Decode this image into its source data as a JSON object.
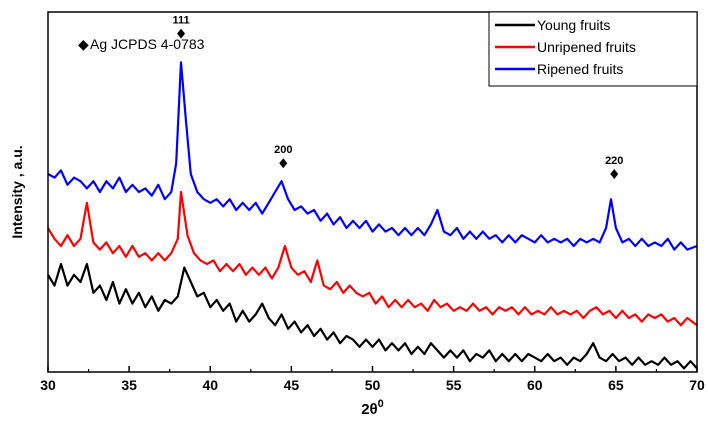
{
  "chart_data": {
    "type": "line",
    "xlabel": "2θ",
    "xlabel_sup": "0",
    "ylabel": "Intensity , a.u.",
    "xlim": [
      30,
      70
    ],
    "ylim": [
      0,
      100
    ],
    "xticks": [
      "30",
      "35",
      "40",
      "45",
      "50",
      "55",
      "60",
      "65",
      "70"
    ],
    "yticks_labeled": false,
    "grid": false,
    "legend_position": "top-right",
    "annotation": {
      "symbol": "◆",
      "text": "Ag JCPDS 4-0783"
    },
    "peak_labels": [
      {
        "x": 38.2,
        "y": 94,
        "label": "111"
      },
      {
        "x": 44.5,
        "y": 58,
        "label": "200"
      },
      {
        "x": 64.9,
        "y": 55,
        "label": "220"
      }
    ],
    "series": [
      {
        "name": "Young fruits",
        "color": "#000000",
        "points": [
          [
            30,
            27
          ],
          [
            30.4,
            24
          ],
          [
            30.8,
            30
          ],
          [
            31.2,
            24
          ],
          [
            31.6,
            27
          ],
          [
            32,
            25
          ],
          [
            32.4,
            30
          ],
          [
            32.8,
            22
          ],
          [
            33.2,
            24
          ],
          [
            33.6,
            20
          ],
          [
            34,
            25
          ],
          [
            34.4,
            19
          ],
          [
            34.8,
            23
          ],
          [
            35.2,
            19
          ],
          [
            35.6,
            22
          ],
          [
            36,
            18
          ],
          [
            36.4,
            21
          ],
          [
            36.8,
            17
          ],
          [
            37.2,
            20
          ],
          [
            37.6,
            19
          ],
          [
            38,
            21
          ],
          [
            38.4,
            29
          ],
          [
            38.8,
            25
          ],
          [
            39.2,
            21
          ],
          [
            39.6,
            22
          ],
          [
            40,
            18
          ],
          [
            40.4,
            20
          ],
          [
            40.8,
            17
          ],
          [
            41.2,
            19
          ],
          [
            41.6,
            14
          ],
          [
            42,
            17
          ],
          [
            42.4,
            14
          ],
          [
            42.8,
            16
          ],
          [
            43.2,
            19
          ],
          [
            43.6,
            15
          ],
          [
            44,
            13
          ],
          [
            44.4,
            16
          ],
          [
            44.8,
            12
          ],
          [
            45.2,
            14
          ],
          [
            45.6,
            11
          ],
          [
            46,
            13
          ],
          [
            46.4,
            10
          ],
          [
            46.8,
            12
          ],
          [
            47.2,
            9
          ],
          [
            47.6,
            11
          ],
          [
            48,
            8
          ],
          [
            48.4,
            10
          ],
          [
            48.8,
            9
          ],
          [
            49.2,
            7
          ],
          [
            49.6,
            9
          ],
          [
            50,
            7
          ],
          [
            50.4,
            9
          ],
          [
            50.8,
            6
          ],
          [
            51.2,
            8
          ],
          [
            51.6,
            6
          ],
          [
            52,
            8
          ],
          [
            52.4,
            5
          ],
          [
            52.8,
            7
          ],
          [
            53.2,
            5
          ],
          [
            53.6,
            8
          ],
          [
            54,
            6
          ],
          [
            54.4,
            4
          ],
          [
            54.8,
            6
          ],
          [
            55.2,
            4
          ],
          [
            55.6,
            6
          ],
          [
            56,
            3
          ],
          [
            56.4,
            5
          ],
          [
            56.8,
            4
          ],
          [
            57.2,
            6
          ],
          [
            57.6,
            3
          ],
          [
            58,
            5
          ],
          [
            58.4,
            3
          ],
          [
            58.8,
            5
          ],
          [
            59.2,
            3
          ],
          [
            59.6,
            5
          ],
          [
            60,
            4
          ],
          [
            60.4,
            3
          ],
          [
            60.8,
            5
          ],
          [
            61.2,
            3
          ],
          [
            61.6,
            4
          ],
          [
            62,
            2
          ],
          [
            62.4,
            4
          ],
          [
            62.8,
            3
          ],
          [
            63.2,
            5
          ],
          [
            63.6,
            8
          ],
          [
            64,
            4
          ],
          [
            64.4,
            3
          ],
          [
            64.8,
            5
          ],
          [
            65.2,
            3
          ],
          [
            65.6,
            4
          ],
          [
            66,
            2
          ],
          [
            66.4,
            4
          ],
          [
            66.8,
            2
          ],
          [
            67.2,
            3
          ],
          [
            67.6,
            2
          ],
          [
            68,
            4
          ],
          [
            68.4,
            2
          ],
          [
            68.8,
            3
          ],
          [
            69.2,
            1
          ],
          [
            69.6,
            3
          ],
          [
            70,
            1
          ]
        ]
      },
      {
        "name": "Unripened fruits",
        "color": "#ff0000",
        "points": [
          [
            30,
            40
          ],
          [
            30.4,
            37
          ],
          [
            30.8,
            35
          ],
          [
            31.2,
            38
          ],
          [
            31.6,
            35
          ],
          [
            32,
            37
          ],
          [
            32.4,
            47
          ],
          [
            32.8,
            36
          ],
          [
            33.2,
            34
          ],
          [
            33.6,
            36
          ],
          [
            34,
            33
          ],
          [
            34.4,
            35
          ],
          [
            34.8,
            32
          ],
          [
            35.2,
            35
          ],
          [
            35.6,
            32
          ],
          [
            36,
            33
          ],
          [
            36.4,
            31
          ],
          [
            36.8,
            33
          ],
          [
            37.2,
            31
          ],
          [
            37.6,
            33
          ],
          [
            38,
            37
          ],
          [
            38.2,
            50
          ],
          [
            38.6,
            38
          ],
          [
            39,
            33
          ],
          [
            39.4,
            31
          ],
          [
            39.8,
            30
          ],
          [
            40.2,
            31
          ],
          [
            40.6,
            28
          ],
          [
            41,
            30
          ],
          [
            41.4,
            28
          ],
          [
            41.8,
            30
          ],
          [
            42.2,
            27
          ],
          [
            42.6,
            29
          ],
          [
            43,
            27
          ],
          [
            43.4,
            29
          ],
          [
            43.8,
            26
          ],
          [
            44.2,
            29
          ],
          [
            44.6,
            35
          ],
          [
            45,
            29
          ],
          [
            45.4,
            27
          ],
          [
            45.8,
            28
          ],
          [
            46.2,
            25
          ],
          [
            46.6,
            31
          ],
          [
            47,
            24
          ],
          [
            47.4,
            23
          ],
          [
            47.8,
            25
          ],
          [
            48.2,
            22
          ],
          [
            48.6,
            24
          ],
          [
            49,
            22
          ],
          [
            49.4,
            21
          ],
          [
            49.8,
            22
          ],
          [
            50.2,
            19
          ],
          [
            50.6,
            21
          ],
          [
            51,
            18
          ],
          [
            51.4,
            20
          ],
          [
            51.8,
            18
          ],
          [
            52.2,
            20
          ],
          [
            52.6,
            18
          ],
          [
            53,
            19
          ],
          [
            53.4,
            17
          ],
          [
            53.8,
            20
          ],
          [
            54.2,
            18
          ],
          [
            54.6,
            19
          ],
          [
            55,
            17
          ],
          [
            55.4,
            18
          ],
          [
            55.8,
            17
          ],
          [
            56.2,
            19
          ],
          [
            56.6,
            17
          ],
          [
            57,
            18
          ],
          [
            57.4,
            16
          ],
          [
            57.8,
            18
          ],
          [
            58.2,
            17
          ],
          [
            58.6,
            18
          ],
          [
            59,
            16
          ],
          [
            59.4,
            18
          ],
          [
            59.8,
            16
          ],
          [
            60.2,
            17
          ],
          [
            60.6,
            16
          ],
          [
            61,
            18
          ],
          [
            61.4,
            16
          ],
          [
            61.8,
            17
          ],
          [
            62.2,
            16
          ],
          [
            62.6,
            17
          ],
          [
            63,
            15
          ],
          [
            63.4,
            17
          ],
          [
            63.8,
            18
          ],
          [
            64.2,
            16
          ],
          [
            64.6,
            17
          ],
          [
            65,
            15
          ],
          [
            65.4,
            17
          ],
          [
            65.8,
            15
          ],
          [
            66.2,
            16
          ],
          [
            66.6,
            14
          ],
          [
            67,
            16
          ],
          [
            67.4,
            15
          ],
          [
            67.8,
            16
          ],
          [
            68.2,
            14
          ],
          [
            68.6,
            15
          ],
          [
            69,
            13
          ],
          [
            69.4,
            15
          ],
          [
            70,
            13
          ]
        ]
      },
      {
        "name": "Ripened fruits",
        "color": "#0000ff",
        "points": [
          [
            30,
            55
          ],
          [
            30.4,
            54
          ],
          [
            30.8,
            56
          ],
          [
            31.2,
            52
          ],
          [
            31.6,
            54
          ],
          [
            32,
            53
          ],
          [
            32.4,
            51
          ],
          [
            32.8,
            53
          ],
          [
            33.2,
            50
          ],
          [
            33.6,
            53
          ],
          [
            34,
            51
          ],
          [
            34.4,
            54
          ],
          [
            34.8,
            50
          ],
          [
            35.2,
            52
          ],
          [
            35.6,
            50
          ],
          [
            36,
            51
          ],
          [
            36.4,
            49
          ],
          [
            36.8,
            52
          ],
          [
            37.2,
            48
          ],
          [
            37.6,
            50
          ],
          [
            37.9,
            58
          ],
          [
            38.2,
            86
          ],
          [
            38.5,
            70
          ],
          [
            38.8,
            55
          ],
          [
            39.2,
            50
          ],
          [
            39.6,
            48
          ],
          [
            40,
            47
          ],
          [
            40.4,
            48
          ],
          [
            40.8,
            46
          ],
          [
            41.2,
            48
          ],
          [
            41.6,
            45
          ],
          [
            42,
            47
          ],
          [
            42.4,
            45
          ],
          [
            42.8,
            47
          ],
          [
            43.2,
            44
          ],
          [
            43.6,
            47
          ],
          [
            44,
            50
          ],
          [
            44.4,
            53
          ],
          [
            44.8,
            48
          ],
          [
            45.2,
            45
          ],
          [
            45.6,
            46
          ],
          [
            46,
            44
          ],
          [
            46.4,
            45
          ],
          [
            46.8,
            42
          ],
          [
            47.2,
            44
          ],
          [
            47.6,
            41
          ],
          [
            48,
            43
          ],
          [
            48.4,
            40
          ],
          [
            48.8,
            42
          ],
          [
            49.2,
            40
          ],
          [
            49.6,
            42
          ],
          [
            50,
            39
          ],
          [
            50.4,
            41
          ],
          [
            50.8,
            39
          ],
          [
            51.2,
            40
          ],
          [
            51.6,
            38
          ],
          [
            52,
            40
          ],
          [
            52.4,
            38
          ],
          [
            52.8,
            40
          ],
          [
            53.2,
            38
          ],
          [
            53.6,
            41
          ],
          [
            54,
            45
          ],
          [
            54.4,
            39
          ],
          [
            54.8,
            38
          ],
          [
            55.2,
            40
          ],
          [
            55.6,
            37
          ],
          [
            56,
            39
          ],
          [
            56.4,
            37
          ],
          [
            56.8,
            39
          ],
          [
            57.2,
            37
          ],
          [
            57.6,
            38
          ],
          [
            58,
            36
          ],
          [
            58.4,
            38
          ],
          [
            58.8,
            36
          ],
          [
            59.2,
            38
          ],
          [
            59.6,
            37
          ],
          [
            60,
            36
          ],
          [
            60.4,
            38
          ],
          [
            60.8,
            36
          ],
          [
            61.2,
            37
          ],
          [
            61.6,
            36
          ],
          [
            62,
            37
          ],
          [
            62.4,
            35
          ],
          [
            62.8,
            37
          ],
          [
            63.2,
            36
          ],
          [
            63.6,
            37
          ],
          [
            64,
            36
          ],
          [
            64.4,
            40
          ],
          [
            64.7,
            48
          ],
          [
            65,
            40
          ],
          [
            65.4,
            36
          ],
          [
            65.8,
            37
          ],
          [
            66.2,
            35
          ],
          [
            66.6,
            37
          ],
          [
            67,
            35
          ],
          [
            67.4,
            36
          ],
          [
            67.8,
            35
          ],
          [
            68.2,
            37
          ],
          [
            68.6,
            34
          ],
          [
            69,
            36
          ],
          [
            69.4,
            34
          ],
          [
            70,
            35
          ]
        ]
      }
    ]
  }
}
